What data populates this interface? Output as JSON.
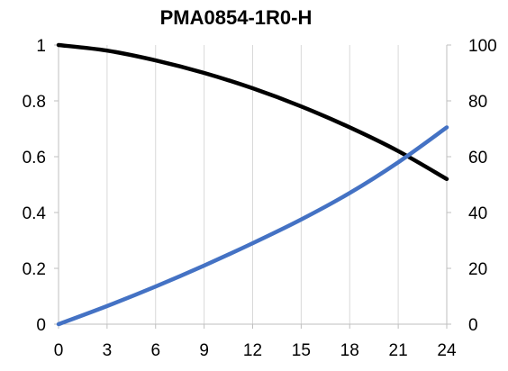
{
  "chart_data": {
    "type": "line",
    "title": "PMA0854-1R0-H",
    "x_ticks": [
      "0",
      "3",
      "6",
      "9",
      "12",
      "15",
      "18",
      "21",
      "24"
    ],
    "xlim": [
      0,
      24
    ],
    "y_left_ticks": [
      "0",
      "0.2",
      "0.4",
      "0.6",
      "0.8",
      "1"
    ],
    "ylim_left": [
      0,
      1
    ],
    "y_right_ticks": [
      "0",
      "20",
      "40",
      "60",
      "80",
      "100"
    ],
    "ylim_right": [
      0,
      100
    ],
    "grid": "vertical",
    "legend": "none",
    "series": [
      {
        "axis": "left",
        "color": "#000000",
        "x": [
          0,
          3,
          6,
          9,
          12,
          15,
          18,
          21,
          24
        ],
        "y": [
          1.0,
          0.98,
          0.945,
          0.9,
          0.845,
          0.78,
          0.705,
          0.62,
          0.52
        ]
      },
      {
        "axis": "right",
        "color": "#4472c4",
        "x": [
          0,
          3,
          6,
          9,
          12,
          15,
          18,
          21,
          24
        ],
        "y": [
          0,
          6.5,
          13.5,
          21,
          29,
          37.5,
          47,
          58,
          70.5
        ]
      }
    ]
  }
}
